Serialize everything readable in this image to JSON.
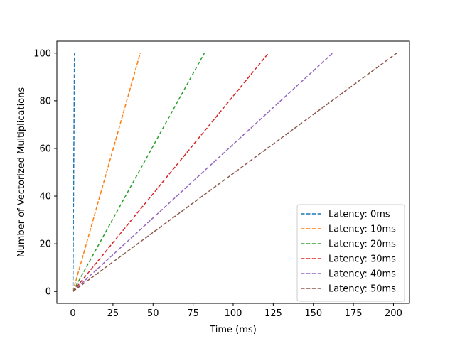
{
  "chart_data": {
    "type": "line",
    "title": "",
    "xlabel": "Time (ms)",
    "ylabel": "Number of Vectorized Multiplications",
    "xlim": [
      -10,
      210
    ],
    "ylim": [
      -5,
      105
    ],
    "xticks": [
      0,
      25,
      50,
      75,
      100,
      125,
      150,
      175,
      200
    ],
    "yticks": [
      0,
      20,
      40,
      60,
      80,
      100
    ],
    "grid": false,
    "legend_position": "lower-right",
    "line_style": "dashed",
    "series": [
      {
        "name": "Latency: 0ms",
        "color": "#1f77b4",
        "x": [
          0,
          1
        ],
        "y": [
          0,
          100
        ]
      },
      {
        "name": "Latency: 10ms",
        "color": "#ff7f0e",
        "x": [
          0,
          42
        ],
        "y": [
          0,
          100
        ]
      },
      {
        "name": "Latency: 20ms",
        "color": "#2ca02c",
        "x": [
          0,
          82
        ],
        "y": [
          0,
          100
        ]
      },
      {
        "name": "Latency: 30ms",
        "color": "#d62728",
        "x": [
          0,
          122
        ],
        "y": [
          0,
          100
        ]
      },
      {
        "name": "Latency: 40ms",
        "color": "#9467bd",
        "x": [
          0,
          162
        ],
        "y": [
          0,
          100
        ]
      },
      {
        "name": "Latency: 50ms",
        "color": "#8c564b",
        "x": [
          0,
          202
        ],
        "y": [
          0,
          100
        ]
      }
    ]
  }
}
